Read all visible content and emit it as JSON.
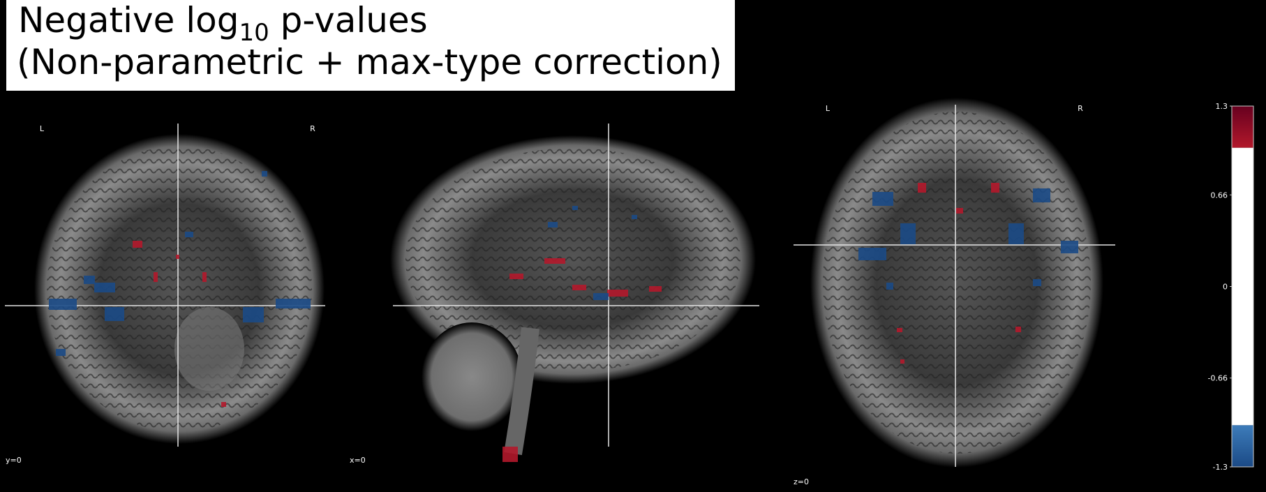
{
  "title": {
    "text": "Negative log",
    "subscript": "10",
    "rest": " p-values",
    "line2": "(Non-parametric + max-type correction)"
  },
  "panels": [
    {
      "left": "L",
      "right": "R",
      "cut_label": "y=0"
    },
    {
      "cut_label": "x=0"
    },
    {
      "left": "L",
      "right": "R",
      "cut_label": "z=0"
    }
  ],
  "colorbar": {
    "lim": [
      -1.3,
      1.3
    ],
    "ticks": [
      1.3,
      0.66,
      0,
      -0.66,
      -1.3
    ],
    "threshold": 1,
    "positive_colors": [
      "#67001f",
      "#b2182b"
    ],
    "negative_colors": [
      "#3d7cba",
      "#1b4a86"
    ],
    "middle_color": "#ffffff"
  }
}
